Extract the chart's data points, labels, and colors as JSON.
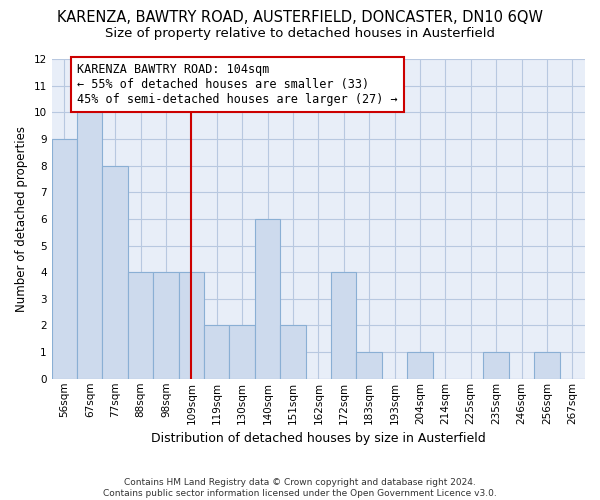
{
  "title": "KARENZA, BAWTRY ROAD, AUSTERFIELD, DONCASTER, DN10 6QW",
  "subtitle": "Size of property relative to detached houses in Austerfield",
  "xlabel": "Distribution of detached houses by size in Austerfield",
  "ylabel": "Number of detached properties",
  "categories": [
    "56sqm",
    "67sqm",
    "77sqm",
    "88sqm",
    "98sqm",
    "109sqm",
    "119sqm",
    "130sqm",
    "140sqm",
    "151sqm",
    "162sqm",
    "172sqm",
    "183sqm",
    "193sqm",
    "204sqm",
    "214sqm",
    "225sqm",
    "235sqm",
    "246sqm",
    "256sqm",
    "267sqm"
  ],
  "values": [
    9,
    10,
    8,
    4,
    4,
    4,
    2,
    2,
    6,
    2,
    0,
    4,
    1,
    0,
    1,
    0,
    0,
    1,
    0,
    1,
    0
  ],
  "bar_color": "#cddaed",
  "bar_edge_color": "#8aafd4",
  "grid_color": "#b8c8e0",
  "background_color": "#e8eef8",
  "ref_line_x": 5.0,
  "ref_line_color": "#cc0000",
  "annotation_text": "KARENZA BAWTRY ROAD: 104sqm\n← 55% of detached houses are smaller (33)\n45% of semi-detached houses are larger (27) →",
  "annotation_box_color": "#cc0000",
  "ylim": [
    0,
    12
  ],
  "yticks": [
    0,
    1,
    2,
    3,
    4,
    5,
    6,
    7,
    8,
    9,
    10,
    11,
    12
  ],
  "footer": "Contains HM Land Registry data © Crown copyright and database right 2024.\nContains public sector information licensed under the Open Government Licence v3.0.",
  "title_fontsize": 10.5,
  "subtitle_fontsize": 9.5,
  "xlabel_fontsize": 9,
  "ylabel_fontsize": 8.5,
  "tick_fontsize": 7.5,
  "annotation_fontsize": 8.5,
  "footer_fontsize": 6.5
}
